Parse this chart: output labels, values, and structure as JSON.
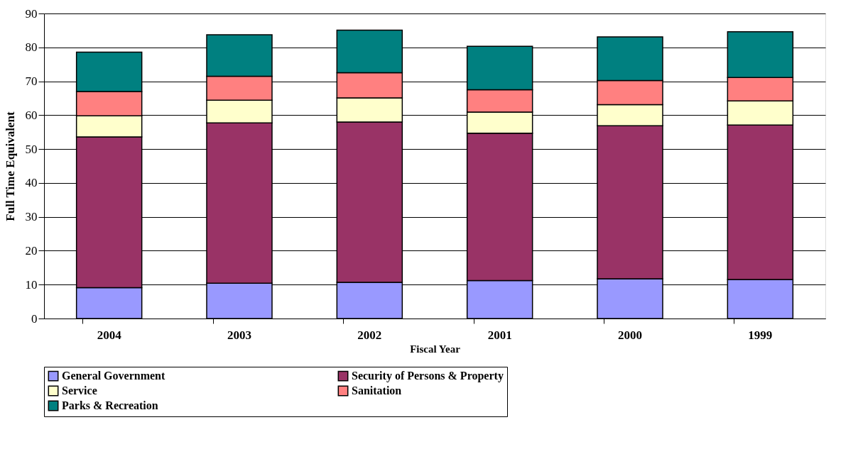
{
  "chart_data": {
    "type": "bar",
    "stacked": true,
    "xlabel": "Fiscal Year",
    "ylabel": "Full Time Equivalent",
    "categories": [
      "2004",
      "2003",
      "2002",
      "2001",
      "2000",
      "1999"
    ],
    "series": [
      {
        "name": "General Government",
        "color": "#9999ff",
        "values": [
          9.1,
          10.4,
          10.7,
          11.2,
          11.7,
          11.5
        ]
      },
      {
        "name": "Security of Persons & Property",
        "color": "#993366",
        "values": [
          44.5,
          47.3,
          47.3,
          43.5,
          45.2,
          45.6
        ]
      },
      {
        "name": "Service",
        "color": "#ffffcc",
        "values": [
          6.2,
          6.7,
          7.1,
          6.2,
          6.2,
          7.1
        ]
      },
      {
        "name": "Sanitation",
        "color": "#ff8080",
        "values": [
          7.2,
          7.1,
          7.4,
          6.6,
          7.1,
          6.9
        ]
      },
      {
        "name": "Parks & Recreation",
        "color": "#008080",
        "values": [
          11.6,
          12.2,
          12.6,
          12.8,
          12.9,
          13.5
        ]
      }
    ],
    "ylim": [
      0,
      90
    ],
    "yticks": [
      0,
      10,
      20,
      30,
      40,
      50,
      60,
      70,
      80,
      90
    ],
    "grid": "y",
    "legend": "bottom"
  }
}
